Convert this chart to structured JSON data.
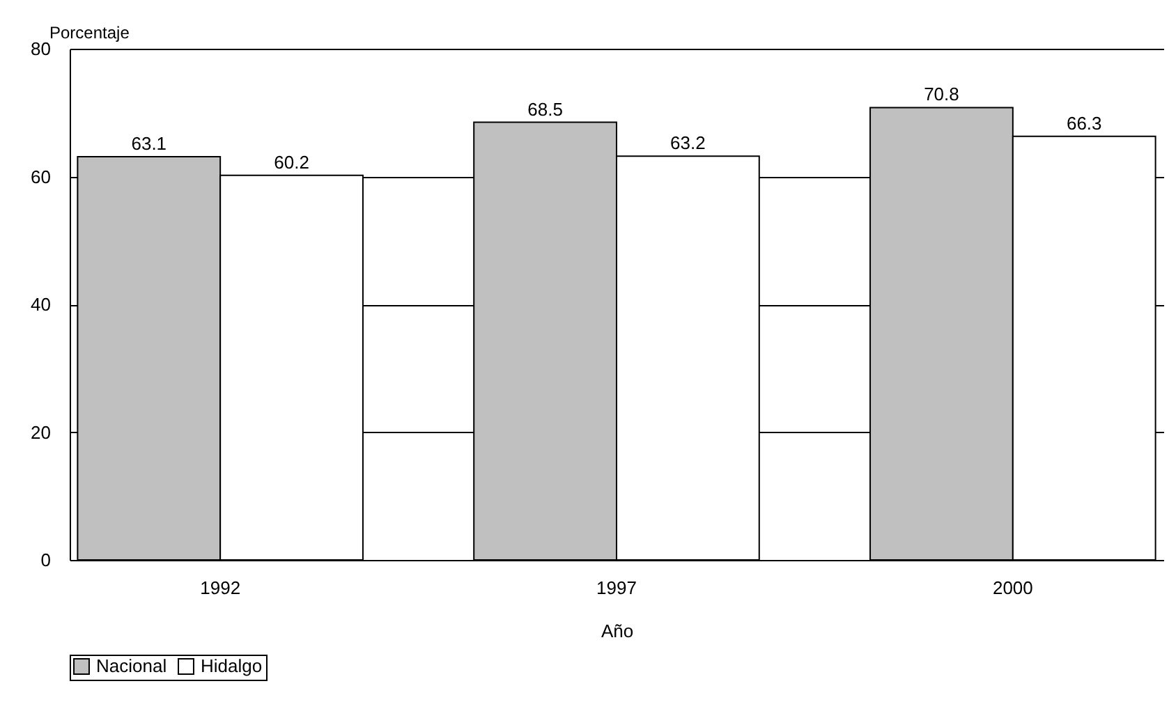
{
  "chart_data": {
    "type": "bar",
    "xlabel": "Año",
    "ylabel": "Porcentaje",
    "categories": [
      "1992",
      "1997",
      "2000"
    ],
    "series": [
      {
        "name": "Nacional",
        "color": "#c0c0c0",
        "values": [
          63.1,
          68.5,
          70.8
        ]
      },
      {
        "name": "Hidalgo",
        "color": "#ffffff",
        "values": [
          60.2,
          63.2,
          66.3
        ]
      }
    ],
    "ylim": [
      0,
      80
    ],
    "yticks": [
      0,
      20,
      40,
      60,
      80
    ],
    "grid": "y",
    "legend": "bottom",
    "data_labels": true
  }
}
